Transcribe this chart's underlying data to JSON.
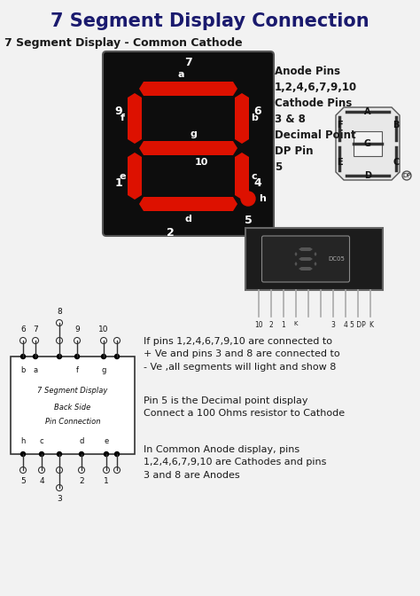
{
  "title": "7 Segment Display Connection",
  "title_color": "#1a1a6e",
  "title_fontsize": 15,
  "bg_color": "#f2f2f2",
  "subtitle": "7 Segment Display - Common Cathode",
  "subtitle_fontsize": 9,
  "anode_text": "Anode Pins\n1,2,4,6,7,9,10\nCathode Pins\n3 & 8\nDecimal Point\nDP Pin\n5",
  "info_text1": "If pins 1,2,4,6,7,9,10 are connected to\n+ Ve and pins 3 and 8 are connected to\n- Ve ,all segments will light and show 8",
  "info_text2": "Pin 5 is the Decimal point display\nConnect a 100 Ohms resistor to Cathode",
  "info_text3": "In Common Anode display, pins\n1,2,4,6,7,9,10 are Cathodes and pins\n3 and 8 are Anodes",
  "seg_on_color": "#dd1100",
  "display_bg": "#0d0d0d",
  "dark_text": "#1a1a1a"
}
